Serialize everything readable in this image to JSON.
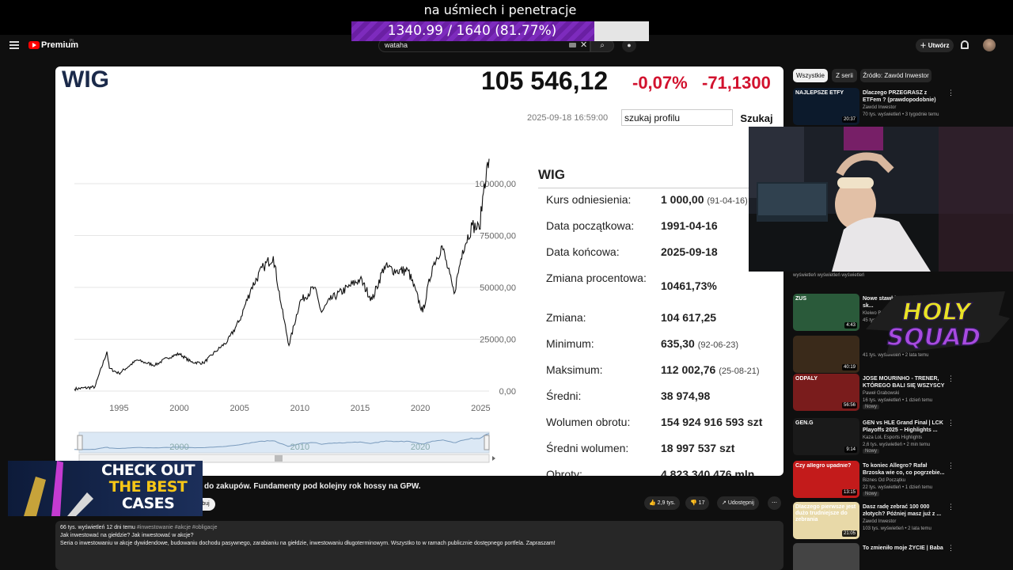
{
  "stream_overlay": {
    "title": "na uśmiech i penetracje",
    "progress_text": "1340.99 / 1640 (81.77%)",
    "progress_fraction": 0.8177
  },
  "youtube": {
    "brand": "Premium",
    "country": "PL",
    "search_value": "wataha",
    "create_label": "Utwórz"
  },
  "quote": {
    "name": "WIG",
    "value": "105 546,12",
    "change_pct": "-0,07%",
    "change_abs": "-71,1300",
    "timestamp": "2025-09-18 16:59:00",
    "search_placeholder": "szukaj profilu",
    "search_button": "Szukaj"
  },
  "info": {
    "title": "WIG",
    "rows": [
      {
        "label": "Kurs odniesienia:",
        "value": "1 000,00",
        "sub": "(91-04-16)"
      },
      {
        "label": "Data początkowa:",
        "value": "1991-04-16",
        "sub": ""
      },
      {
        "label": "Data końcowa:",
        "value": "2025-09-18",
        "sub": ""
      },
      {
        "label": "Zmiana procentowa:",
        "value": "10461,73%",
        "sub": ""
      },
      {
        "label": "Zmiana:",
        "value": "104 617,25",
        "sub": ""
      },
      {
        "label": "Minimum:",
        "value": "635,30",
        "sub": "(92-06-23)"
      },
      {
        "label": "Maksimum:",
        "value": "112 002,76",
        "sub": "(25-08-21)"
      },
      {
        "label": "Średni:",
        "value": "38 974,98",
        "sub": ""
      },
      {
        "label": "Wolumen obrotu:",
        "value": "154 924 916 593 szt",
        "sub": ""
      },
      {
        "label": "Średni wolumen:",
        "value": "18 997 537 szt",
        "sub": ""
      },
      {
        "label": "Obroty:",
        "value": "4 823 340 476 mln",
        "sub": ""
      }
    ]
  },
  "chart_data": {
    "type": "line",
    "title": "",
    "xlabel": "",
    "ylabel": "",
    "x_ticks": [
      "1995",
      "2000",
      "2005",
      "2010",
      "2015",
      "2020",
      "2025"
    ],
    "y_ticks": [
      "0,00",
      "25000,00",
      "50000,00",
      "75000,00",
      "100000,00"
    ],
    "ylim": [
      0,
      100000
    ],
    "xlim": [
      1991.3,
      2025.7
    ],
    "navigator_ticks": [
      "2000",
      "2010",
      "2020"
    ],
    "series": [
      {
        "name": "",
        "x": [
          1991.3,
          1993.0,
          1994.0,
          1994.2,
          1995.0,
          1996.5,
          1997.0,
          1998.0,
          1999.0,
          2000.0,
          2001.0,
          2002.0,
          2003.0,
          2004.0,
          2005.0,
          2006.0,
          2007.0,
          2007.8,
          2008.5,
          2009.1,
          2010.0,
          2011.2,
          2011.8,
          2012.5,
          2014.0,
          2015.0,
          2016.0,
          2017.0,
          2018.0,
          2019.0,
          2020.2,
          2021.0,
          2021.8,
          2022.8,
          2023.5,
          2024.3,
          2024.9,
          2025.3,
          2025.7
        ],
        "y": [
          1000,
          2000,
          19000,
          11000,
          8500,
          15000,
          14000,
          12500,
          16000,
          18000,
          14000,
          13500,
          19000,
          24000,
          34000,
          50000,
          60000,
          65000,
          40000,
          22000,
          43000,
          50000,
          38000,
          44000,
          50000,
          54000,
          44000,
          60000,
          58000,
          58000,
          38000,
          60000,
          70000,
          47000,
          68000,
          80000,
          78000,
          100000,
          112000
        ]
      }
    ]
  },
  "chips": [
    {
      "label": "Wszystkie",
      "active": true
    },
    {
      "label": "Z serii",
      "active": false
    },
    {
      "label": "Źródło: Zawód Inwestor",
      "active": false
    }
  ],
  "recommendations": [
    {
      "title": "Dlaczego PRZEGRASZ z ETFem ? (prawdopodobnie) zarobisz ...",
      "channel": "Zawód Inwestor",
      "meta": "70 tys. wyświetleń • 3 tygodnie temu",
      "duration": "20:37",
      "badge": "",
      "thumb_text": "NAJLEPSZE ETFY",
      "color": "#0c1a2c"
    },
    {
      "title": "",
      "channel": "",
      "meta": "wyświetleń   wyświetleń   wyświetleń",
      "duration": "",
      "badge": "",
      "thumb_text": "",
      "color": "#222"
    },
    {
      "title": "Nowe stawki ZUS minimalna - sk...",
      "channel": "Kleiwo Biuro R...",
      "meta": "45 tys.",
      "duration": "4:43",
      "badge": "",
      "thumb_text": "ZUS",
      "color": "#2a5a3a"
    },
    {
      "title": "",
      "channel": "",
      "meta": "41 tys. wyświetleń • 2 lata temu",
      "duration": "40:19",
      "badge": "",
      "thumb_text": "",
      "color": "#3a2a1a"
    },
    {
      "title": "JOSE MOURINHO - TRENER, KTÓREGO BALI SIĘ WSZYSCY",
      "channel": "Paweł Grabowski",
      "meta": "16 tys. wyświetleń • 1 dzień temu",
      "duration": "56:56",
      "badge": "Nowy",
      "thumb_text": "ODPALY",
      "color": "#7a1c1c"
    },
    {
      "title": "GEN vs HLE Grand Final | LCK Playoffs 2025 – Highlights ...",
      "channel": "Kaza LoL Esports Highlights",
      "meta": "2,6 tys. wyświetleń • 2 min temu",
      "duration": "9:14",
      "badge": "Nowy",
      "thumb_text": "GEN.G",
      "color": "#1a1a1a"
    },
    {
      "title": "To koniec Allegro? Rafał Brzoska wie co, co pogrzebie...",
      "channel": "Biznes Od Początku",
      "meta": "22 tys. wyświetleń • 1 dzień temu",
      "duration": "13:15",
      "badge": "Nowy",
      "thumb_text": "Czy allegro upadnie?",
      "color": "#c31b1b"
    },
    {
      "title": "Dasz radę zebrać 100 000 złotych? Później masz już z ...",
      "channel": "Zawód Inwestor",
      "meta": "103 tys. wyświetleń • 2 lata temu",
      "duration": "21:05",
      "badge": "",
      "thumb_text": "Dlaczego pierwsze jest dużo trudniejsze do zebrania",
      "color": "#e8d9a8"
    },
    {
      "title": "To zmieniło moje ŻYCIE | Baba",
      "channel": "",
      "meta": "",
      "duration": "",
      "badge": "",
      "thumb_text": "",
      "color": "#444"
    }
  ],
  "holy_squad": {
    "line1": "HOLY",
    "line2": "SQUAD"
  },
  "cases_overlay": {
    "line1": "CHECK OUT",
    "line2": "THE BEST",
    "line3": "CASES"
  },
  "video": {
    "title_partial": "do zakupów. Fundamenty pod kolejny rok hossy na GPW.",
    "subscribe": "buj",
    "likes": "2,9 tys.",
    "dislikes": "17",
    "share": "Udostępnij",
    "desc_meta": "66 tys. wyświetleń  12 dni temu",
    "desc_tags": "#inwestowanie #akcje #obligacje",
    "desc_line1": "Jak inwestować na giełdzie? Jak inwestować w akcje?",
    "desc_line2": "Seria o inwestowaniu w akcje dywidendowe, budowaniu dochodu pasywnego, zarabianiu na giełdzie, inwestowaniu długoterminowym. Wszystko to w ramach publicznie dostępnego portfela. Zapraszam!"
  }
}
